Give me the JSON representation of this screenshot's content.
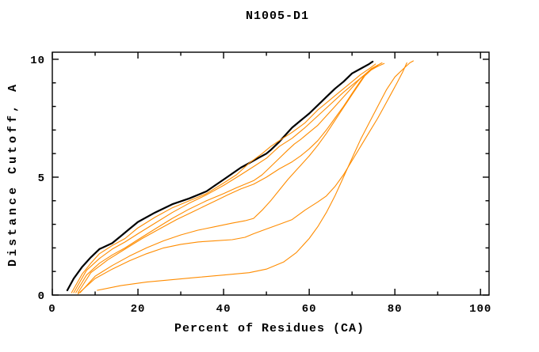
{
  "chart_data": {
    "type": "line",
    "title": "N1005-D1",
    "xlabel": "Percent of Residues (CA)",
    "ylabel": "Distance Cutoff, A",
    "xlim": [
      0,
      102
    ],
    "ylim": [
      0,
      10.3
    ],
    "xticks_major": [
      0,
      20,
      40,
      60,
      80,
      100
    ],
    "xticks_minor": [
      10,
      30,
      50,
      70,
      90
    ],
    "yticks_major": [
      0,
      5,
      10
    ],
    "yticks_minor": [
      1,
      2,
      3,
      4,
      6,
      7,
      8,
      9
    ],
    "grid": false,
    "legend": "none",
    "colors": {
      "reference": "#000000",
      "model": "#ff8c00"
    },
    "series": [
      {
        "name": "black-reference",
        "color": "#000000",
        "width": 2.2,
        "points": [
          [
            3.5,
            0.2
          ],
          [
            5,
            0.7
          ],
          [
            7,
            1.2
          ],
          [
            9,
            1.6
          ],
          [
            11,
            1.95
          ],
          [
            14,
            2.2
          ],
          [
            16,
            2.5
          ],
          [
            18,
            2.8
          ],
          [
            20,
            3.1
          ],
          [
            24,
            3.5
          ],
          [
            28,
            3.85
          ],
          [
            32,
            4.1
          ],
          [
            36,
            4.4
          ],
          [
            38,
            4.65
          ],
          [
            40,
            4.9
          ],
          [
            42,
            5.15
          ],
          [
            44,
            5.4
          ],
          [
            46,
            5.6
          ],
          [
            48,
            5.8
          ],
          [
            50,
            6.0
          ],
          [
            51,
            6.15
          ],
          [
            53,
            6.5
          ],
          [
            56,
            7.1
          ],
          [
            58,
            7.4
          ],
          [
            60,
            7.7
          ],
          [
            62,
            8.05
          ],
          [
            64,
            8.4
          ],
          [
            66,
            8.75
          ],
          [
            68,
            9.05
          ],
          [
            70,
            9.4
          ],
          [
            72,
            9.6
          ],
          [
            74,
            9.8
          ],
          [
            74.8,
            9.9
          ]
        ]
      },
      {
        "name": "orange-model-1",
        "color": "#ff8c00",
        "width": 1.1,
        "points": [
          [
            4.5,
            0.1
          ],
          [
            7,
            0.9
          ],
          [
            9,
            1.35
          ],
          [
            11,
            1.75
          ],
          [
            14,
            2.1
          ],
          [
            17,
            2.4
          ],
          [
            20,
            2.85
          ],
          [
            24,
            3.3
          ],
          [
            28,
            3.7
          ],
          [
            32,
            4.0
          ],
          [
            36,
            4.3
          ],
          [
            40,
            4.75
          ],
          [
            43,
            5.1
          ],
          [
            46,
            5.6
          ],
          [
            49,
            6.0
          ],
          [
            51,
            6.3
          ],
          [
            53,
            6.55
          ],
          [
            56,
            6.9
          ],
          [
            59,
            7.3
          ],
          [
            62,
            7.85
          ],
          [
            64,
            8.15
          ],
          [
            66,
            8.45
          ],
          [
            68,
            8.75
          ],
          [
            70,
            9.05
          ],
          [
            72,
            9.35
          ],
          [
            74,
            9.6
          ],
          [
            75.5,
            9.8
          ]
        ]
      },
      {
        "name": "orange-model-2",
        "color": "#ff8c00",
        "width": 1.1,
        "points": [
          [
            5,
            0.1
          ],
          [
            8,
            1.05
          ],
          [
            11,
            1.55
          ],
          [
            14,
            1.95
          ],
          [
            17,
            2.25
          ],
          [
            20,
            2.6
          ],
          [
            24,
            3.05
          ],
          [
            28,
            3.5
          ],
          [
            32,
            3.9
          ],
          [
            36,
            4.25
          ],
          [
            40,
            4.65
          ],
          [
            44,
            5.1
          ],
          [
            47,
            5.45
          ],
          [
            50,
            5.8
          ],
          [
            53,
            6.3
          ],
          [
            56,
            6.65
          ],
          [
            59,
            7.1
          ],
          [
            62,
            7.6
          ],
          [
            65,
            8.1
          ],
          [
            68,
            8.6
          ],
          [
            70,
            8.9
          ],
          [
            72,
            9.2
          ],
          [
            74,
            9.5
          ],
          [
            76,
            9.75
          ],
          [
            77,
            9.85
          ]
        ]
      },
      {
        "name": "orange-model-3",
        "color": "#ff8c00",
        "width": 1.1,
        "points": [
          [
            5.5,
            0.1
          ],
          [
            8,
            0.85
          ],
          [
            11,
            1.35
          ],
          [
            14,
            1.7
          ],
          [
            17,
            2.0
          ],
          [
            20,
            2.35
          ],
          [
            24,
            2.8
          ],
          [
            28,
            3.25
          ],
          [
            32,
            3.65
          ],
          [
            36,
            4.0
          ],
          [
            40,
            4.3
          ],
          [
            43,
            4.55
          ],
          [
            45,
            4.7
          ],
          [
            47,
            4.85
          ],
          [
            49,
            5.1
          ],
          [
            51,
            5.45
          ],
          [
            53,
            5.8
          ],
          [
            55,
            6.15
          ],
          [
            56.5,
            6.4
          ],
          [
            58,
            6.6
          ],
          [
            60,
            6.9
          ],
          [
            62,
            7.2
          ],
          [
            64,
            7.6
          ],
          [
            66,
            8.0
          ],
          [
            68,
            8.4
          ],
          [
            70,
            8.8
          ],
          [
            72,
            9.2
          ],
          [
            74,
            9.5
          ],
          [
            76,
            9.7
          ],
          [
            77.5,
            9.82
          ]
        ]
      },
      {
        "name": "orange-model-4",
        "color": "#ff8c00",
        "width": 1.1,
        "points": [
          [
            6,
            0.1
          ],
          [
            9,
            0.95
          ],
          [
            13,
            1.5
          ],
          [
            17,
            1.95
          ],
          [
            21,
            2.4
          ],
          [
            25,
            2.8
          ],
          [
            29,
            3.2
          ],
          [
            33,
            3.55
          ],
          [
            37,
            3.9
          ],
          [
            41,
            4.25
          ],
          [
            44,
            4.5
          ],
          [
            47,
            4.7
          ],
          [
            50,
            5.0
          ],
          [
            53,
            5.35
          ],
          [
            56,
            5.65
          ],
          [
            58,
            5.9
          ],
          [
            60,
            6.2
          ],
          [
            62,
            6.55
          ],
          [
            64,
            7.0
          ],
          [
            66,
            7.5
          ],
          [
            68,
            8.0
          ],
          [
            70,
            8.55
          ],
          [
            71.5,
            8.95
          ],
          [
            73,
            9.35
          ],
          [
            74.5,
            9.6
          ],
          [
            76,
            9.75
          ]
        ]
      },
      {
        "name": "orange-model-5",
        "color": "#ff8c00",
        "width": 1.1,
        "points": [
          [
            6.5,
            0.1
          ],
          [
            10,
            0.8
          ],
          [
            14,
            1.25
          ],
          [
            18,
            1.65
          ],
          [
            22,
            2.0
          ],
          [
            26,
            2.3
          ],
          [
            30,
            2.55
          ],
          [
            34,
            2.75
          ],
          [
            38,
            2.9
          ],
          [
            42,
            3.05
          ],
          [
            45,
            3.15
          ],
          [
            47,
            3.25
          ],
          [
            49,
            3.6
          ],
          [
            51,
            4.0
          ],
          [
            53,
            4.45
          ],
          [
            55,
            4.9
          ],
          [
            57,
            5.3
          ],
          [
            58,
            5.5
          ],
          [
            60,
            5.9
          ],
          [
            62,
            6.35
          ],
          [
            64,
            6.85
          ],
          [
            66,
            7.4
          ],
          [
            68,
            7.95
          ],
          [
            70,
            8.5
          ],
          [
            71.5,
            8.9
          ],
          [
            73,
            9.3
          ],
          [
            74.5,
            9.55
          ],
          [
            76,
            9.72
          ]
        ]
      },
      {
        "name": "orange-model-6",
        "color": "#ff8c00",
        "width": 1.1,
        "points": [
          [
            6,
            0.05
          ],
          [
            10,
            0.7
          ],
          [
            14,
            1.1
          ],
          [
            18,
            1.45
          ],
          [
            22,
            1.75
          ],
          [
            26,
            2.0
          ],
          [
            30,
            2.15
          ],
          [
            34,
            2.25
          ],
          [
            38,
            2.3
          ],
          [
            42,
            2.35
          ],
          [
            45,
            2.45
          ],
          [
            47,
            2.6
          ],
          [
            50,
            2.8
          ],
          [
            53,
            3.0
          ],
          [
            56,
            3.2
          ],
          [
            59,
            3.6
          ],
          [
            62,
            3.95
          ],
          [
            64,
            4.2
          ],
          [
            66,
            4.6
          ],
          [
            68,
            5.1
          ],
          [
            70,
            5.7
          ],
          [
            72,
            6.3
          ],
          [
            74,
            6.9
          ],
          [
            76,
            7.5
          ],
          [
            77.5,
            8.0
          ],
          [
            79,
            8.5
          ],
          [
            80.5,
            9.0
          ],
          [
            81.8,
            9.45
          ],
          [
            82.8,
            9.85
          ]
        ]
      },
      {
        "name": "orange-model-7",
        "color": "#ff8c00",
        "width": 1.1,
        "points": [
          [
            10.5,
            0.2
          ],
          [
            16,
            0.4
          ],
          [
            22,
            0.55
          ],
          [
            28,
            0.65
          ],
          [
            34,
            0.75
          ],
          [
            40,
            0.85
          ],
          [
            46,
            0.95
          ],
          [
            50,
            1.1
          ],
          [
            54,
            1.4
          ],
          [
            57,
            1.8
          ],
          [
            60,
            2.4
          ],
          [
            62,
            2.9
          ],
          [
            64,
            3.5
          ],
          [
            66,
            4.2
          ],
          [
            68,
            5.0
          ],
          [
            70,
            5.8
          ],
          [
            72,
            6.6
          ],
          [
            74,
            7.3
          ],
          [
            76,
            8.0
          ],
          [
            78,
            8.7
          ],
          [
            80,
            9.25
          ],
          [
            82,
            9.6
          ],
          [
            83.5,
            9.85
          ],
          [
            84.3,
            9.93
          ]
        ]
      }
    ]
  }
}
